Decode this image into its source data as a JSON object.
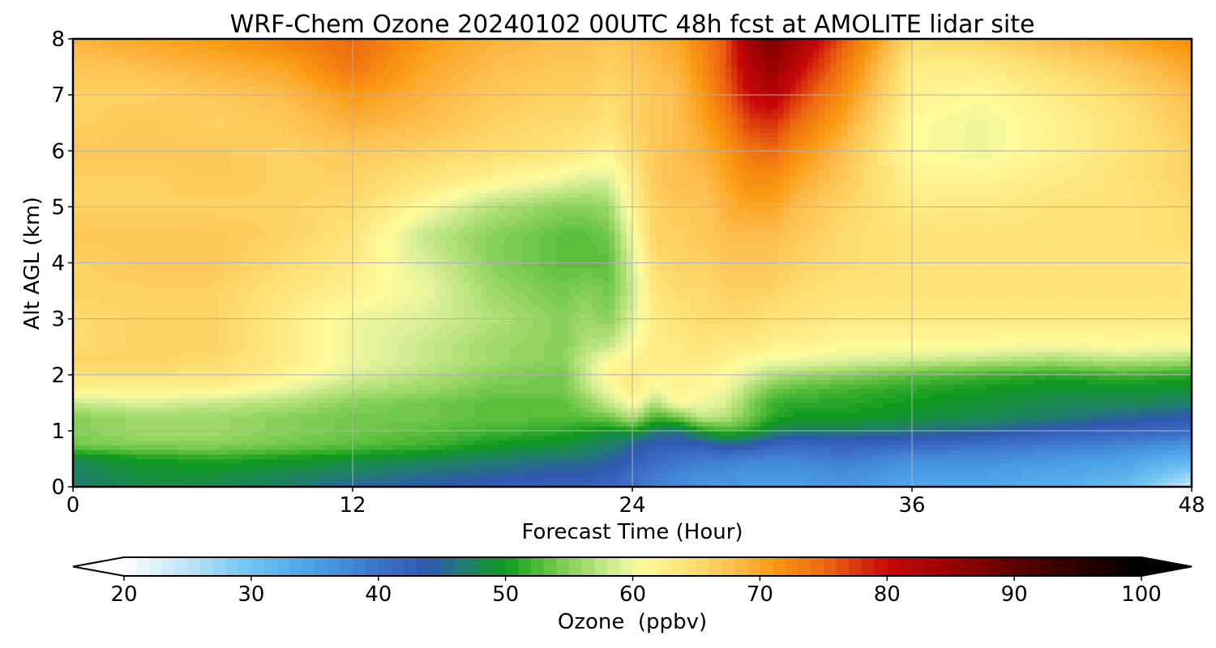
{
  "chart_data": {
    "type": "heatmap",
    "title": "WRF-Chem Ozone  20240102 00UTC 48h fcst at AMOLITE lidar site",
    "xlabel": "Forecast Time (Hour)",
    "ylabel": "Alt AGL (km)",
    "xlim": [
      0,
      48
    ],
    "ylim": [
      0,
      8
    ],
    "x_ticks": [
      0,
      12,
      24,
      36,
      48
    ],
    "y_ticks": [
      0,
      1,
      2,
      3,
      4,
      5,
      6,
      7,
      8
    ],
    "grid": true,
    "colorbar": {
      "label": "Ozone  (ppbv)",
      "range": [
        20,
        100
      ],
      "ticks": [
        20,
        30,
        40,
        50,
        60,
        70,
        80,
        90,
        100
      ],
      "extend": "both",
      "orientation": "horizontal",
      "placement": "bottom",
      "stops": [
        {
          "value": 20,
          "color": "#ffffff"
        },
        {
          "value": 25,
          "color": "#bfe3f7"
        },
        {
          "value": 30,
          "color": "#6ec3f2"
        },
        {
          "value": 35,
          "color": "#4aa0e6"
        },
        {
          "value": 40,
          "color": "#3d72c9"
        },
        {
          "value": 44,
          "color": "#2f58b0"
        },
        {
          "value": 47,
          "color": "#1f7f6a"
        },
        {
          "value": 50,
          "color": "#0f9a1e"
        },
        {
          "value": 53,
          "color": "#5bbf3c"
        },
        {
          "value": 56,
          "color": "#9fd96a"
        },
        {
          "value": 59,
          "color": "#dcf09a"
        },
        {
          "value": 61,
          "color": "#fffa9a"
        },
        {
          "value": 65,
          "color": "#fddc6e"
        },
        {
          "value": 68,
          "color": "#fdbe4e"
        },
        {
          "value": 71,
          "color": "#fb9a12"
        },
        {
          "value": 75,
          "color": "#ee6a10"
        },
        {
          "value": 80,
          "color": "#c80808"
        },
        {
          "value": 86,
          "color": "#8f0000"
        },
        {
          "value": 93,
          "color": "#3e0000"
        },
        {
          "value": 100,
          "color": "#000000"
        }
      ]
    },
    "time_hours": [
      0,
      3,
      6,
      9,
      12,
      15,
      18,
      21,
      22,
      23,
      24,
      25,
      26,
      27,
      28,
      29,
      30,
      31,
      33,
      36,
      39,
      42,
      45,
      48
    ],
    "altitudes_km": [
      0,
      0.25,
      0.5,
      0.75,
      1,
      1.25,
      1.5,
      1.75,
      2,
      2.25,
      2.5,
      3,
      3.5,
      4,
      4.5,
      5,
      5.5,
      6,
      6.5,
      7,
      7.5,
      8
    ],
    "values_ppbv": [
      [
        47,
        47,
        48,
        54,
        55,
        55,
        58,
        62,
        64,
        66,
        65,
        65,
        66,
        66,
        67,
        66,
        66,
        67,
        66,
        66,
        67,
        69
      ],
      [
        48,
        49,
        50,
        55,
        56,
        56,
        59,
        62,
        64,
        66,
        66,
        66,
        66,
        67,
        67,
        66,
        66,
        67,
        67,
        66,
        68,
        70
      ],
      [
        48,
        49,
        51,
        55,
        56,
        56,
        58,
        62,
        64,
        65,
        66,
        66,
        66,
        67,
        67,
        66,
        67,
        67,
        66,
        67,
        69,
        71
      ],
      [
        47,
        48,
        50,
        54,
        55,
        55,
        57,
        60,
        62,
        63,
        63,
        63,
        64,
        65,
        66,
        66,
        66,
        66,
        67,
        68,
        70,
        73
      ],
      [
        45,
        47,
        49,
        53,
        54,
        54,
        55,
        57,
        59,
        60,
        60,
        60,
        62,
        63,
        64,
        65,
        66,
        67,
        69,
        71,
        74,
        75
      ],
      [
        44,
        46,
        48,
        52,
        53,
        54,
        54,
        56,
        57,
        58,
        58,
        59,
        60,
        59,
        58,
        61,
        64,
        66,
        68,
        69,
        70,
        71
      ],
      [
        43,
        45,
        47,
        50,
        52,
        53,
        53,
        54,
        55,
        56,
        56,
        57,
        56,
        55,
        55,
        57,
        62,
        65,
        66,
        67,
        68,
        69
      ],
      [
        42,
        44,
        46,
        49,
        51,
        53,
        53,
        54,
        54,
        55,
        55,
        55,
        54,
        53,
        53,
        55,
        60,
        64,
        65,
        66,
        67,
        68
      ],
      [
        42,
        44,
        46,
        48,
        50,
        53,
        55,
        57,
        58,
        58,
        57,
        56,
        55,
        53,
        53,
        55,
        59,
        63,
        65,
        66,
        67,
        68
      ],
      [
        41,
        43,
        45,
        47,
        49,
        54,
        58,
        60,
        62,
        61,
        58,
        55,
        54,
        53,
        54,
        56,
        59,
        62,
        64,
        65,
        66,
        67
      ],
      [
        40,
        41,
        43,
        45,
        50,
        57,
        61,
        63,
        63,
        62,
        61,
        59,
        58,
        59,
        60,
        62,
        63,
        65,
        66,
        66,
        67,
        68
      ],
      [
        38,
        39,
        41,
        43,
        47,
        52,
        57,
        60,
        62,
        63,
        63,
        63,
        64,
        65,
        66,
        66,
        67,
        67,
        67,
        67,
        68,
        69
      ],
      [
        37,
        38,
        40,
        43,
        46,
        54,
        61,
        62,
        62,
        63,
        63,
        64,
        65,
        66,
        66,
        67,
        68,
        68,
        68,
        68,
        69,
        70
      ],
      [
        36,
        37,
        39,
        43,
        50,
        58,
        60,
        61,
        62,
        63,
        64,
        65,
        65,
        66,
        67,
        67,
        68,
        69,
        70,
        71,
        72,
        73
      ],
      [
        36,
        37,
        39,
        45,
        52,
        57,
        59,
        60,
        61,
        62,
        63,
        65,
        66,
        67,
        68,
        69,
        70,
        71,
        73,
        75,
        76,
        76
      ],
      [
        35,
        36,
        38,
        44,
        51,
        54,
        55,
        57,
        59,
        61,
        63,
        65,
        66,
        67,
        68,
        70,
        72,
        74,
        77,
        80,
        82,
        84
      ],
      [
        35,
        36,
        38,
        42,
        48,
        51,
        52,
        54,
        57,
        60,
        62,
        64,
        66,
        67,
        68,
        70,
        72,
        75,
        78,
        82,
        85,
        88
      ],
      [
        35,
        36,
        38,
        41,
        47,
        50,
        51,
        53,
        56,
        60,
        62,
        64,
        65,
        66,
        67,
        68,
        70,
        72,
        75,
        78,
        81,
        84
      ],
      [
        36,
        37,
        39,
        42,
        47,
        50,
        51,
        52,
        55,
        59,
        61,
        63,
        64,
        65,
        65,
        66,
        67,
        68,
        70,
        72,
        74,
        76
      ],
      [
        34,
        35,
        37,
        41,
        46,
        49,
        50,
        51,
        53,
        58,
        61,
        63,
        64,
        64,
        64,
        63,
        62,
        61,
        61,
        62,
        63,
        65
      ],
      [
        34,
        35,
        37,
        40,
        45,
        48,
        49,
        50,
        52,
        57,
        61,
        63,
        64,
        64,
        64,
        63,
        62,
        60,
        60,
        61,
        63,
        66
      ],
      [
        33,
        34,
        36,
        39,
        43,
        47,
        48,
        49,
        51,
        56,
        60,
        63,
        64,
        64,
        64,
        64,
        63,
        62,
        62,
        63,
        65,
        68
      ],
      [
        31,
        33,
        35,
        38,
        42,
        45,
        48,
        49,
        52,
        57,
        61,
        63,
        64,
        64,
        64,
        64,
        64,
        64,
        64,
        65,
        67,
        70
      ],
      [
        24,
        28,
        32,
        36,
        41,
        44,
        47,
        49,
        51,
        56,
        60,
        63,
        64,
        64,
        65,
        65,
        66,
        66,
        67,
        68,
        70,
        72
      ]
    ]
  }
}
